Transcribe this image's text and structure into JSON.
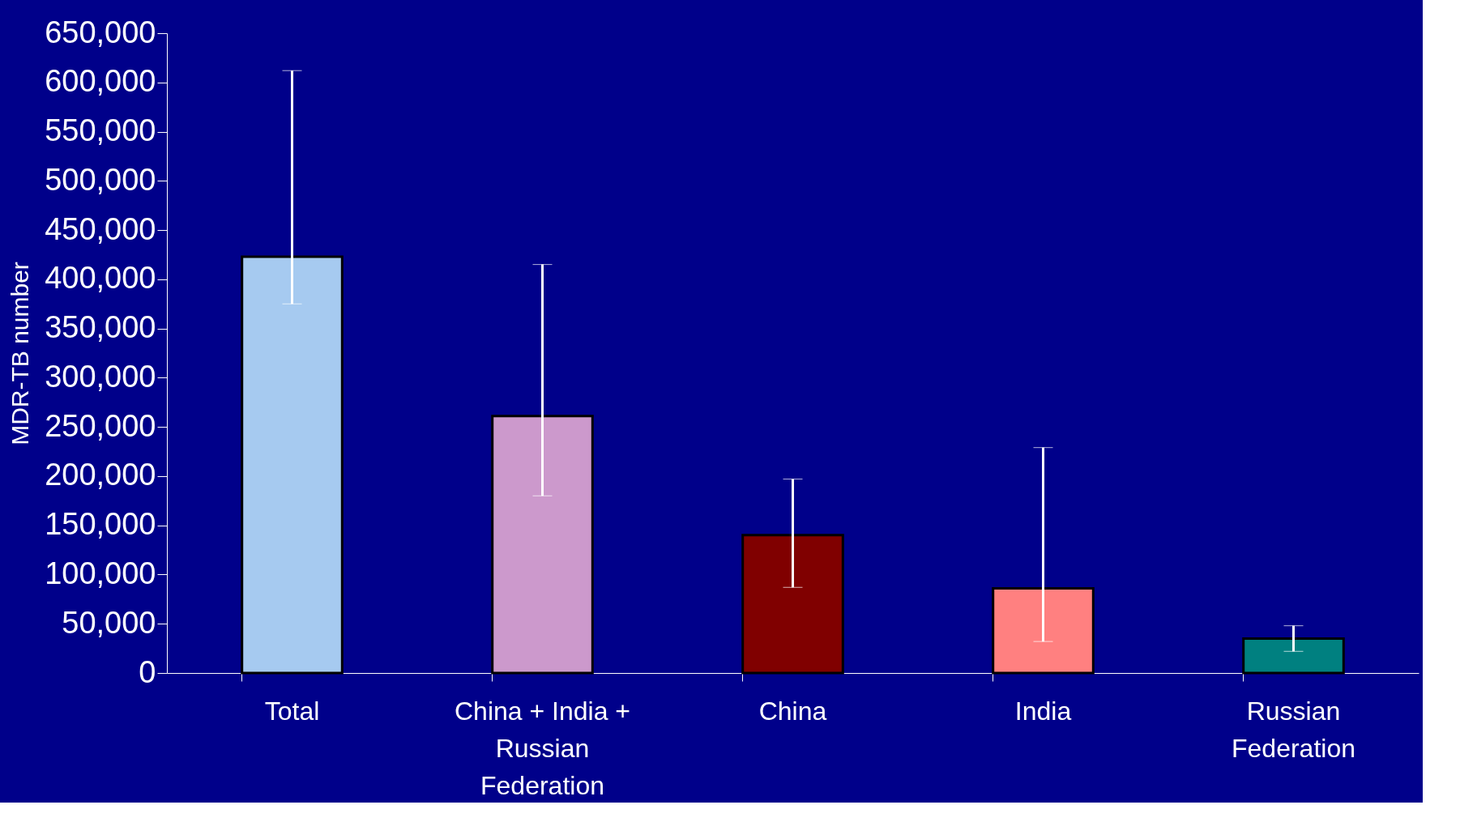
{
  "chart_data": {
    "type": "bar",
    "ylabel": "MDR-TB number",
    "categories": [
      "Total",
      "China + India + Russian Federation",
      "China",
      "India",
      "Russian Federation"
    ],
    "values": [
      423000,
      261000,
      140000,
      86000,
      35000
    ],
    "colors": [
      "#a6caf0",
      "#cc99cc",
      "#800000",
      "#ff8080",
      "#008080"
    ],
    "errors": [
      [
        375000,
        612000
      ],
      [
        180000,
        415000
      ],
      [
        87000,
        197000
      ],
      [
        32000,
        229000
      ],
      [
        22000,
        48000
      ]
    ],
    "ylim": [
      0,
      650000
    ],
    "yticks": [
      0,
      {
        "value": 50000,
        "label": "50,000"
      },
      {
        "value": 100000,
        "label": "100,000"
      },
      {
        "value": 150000,
        "label": "150,000"
      },
      {
        "value": 200000,
        "label": "200,000"
      },
      {
        "value": 250000,
        "label": "250,000"
      },
      {
        "value": 300000,
        "label": "300,000"
      },
      {
        "value": 350000,
        "label": "350,000"
      },
      {
        "value": 400000,
        "label": "400,000"
      },
      {
        "value": 450000,
        "label": "450,000"
      },
      {
        "value": 500000,
        "label": "500,000"
      },
      {
        "value": 550000,
        "label": "550,000"
      },
      {
        "value": 600000,
        "label": "600,000"
      },
      {
        "value": 650000,
        "label": "650,000"
      }
    ],
    "grid": false,
    "legend": false
  }
}
